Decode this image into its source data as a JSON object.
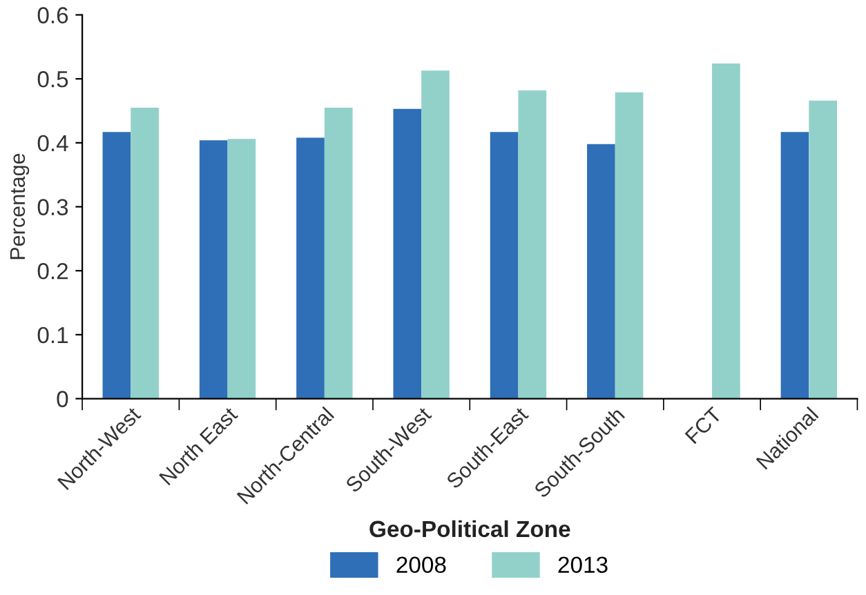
{
  "chart_data": {
    "type": "bar",
    "xlabel": "Geo-Political Zone",
    "ylabel": "Percentage",
    "categories": [
      "North-West",
      "North East",
      "North-Central",
      "South-West",
      "South-East",
      "South-South",
      "FCT",
      "National"
    ],
    "series": [
      {
        "name": "2008",
        "color": "#2e6fb7",
        "values": [
          0.417,
          0.404,
          0.408,
          0.453,
          0.417,
          0.398,
          null,
          0.417
        ]
      },
      {
        "name": "2013",
        "color": "#92d1ca",
        "values": [
          0.455,
          0.406,
          0.455,
          0.513,
          0.482,
          0.479,
          0.524,
          0.466
        ]
      }
    ],
    "ylim": [
      0,
      0.6
    ],
    "yticks": [
      0,
      0.1,
      0.2,
      0.3,
      0.4,
      0.5,
      0.6
    ],
    "grid": false,
    "legend": "bottom"
  }
}
